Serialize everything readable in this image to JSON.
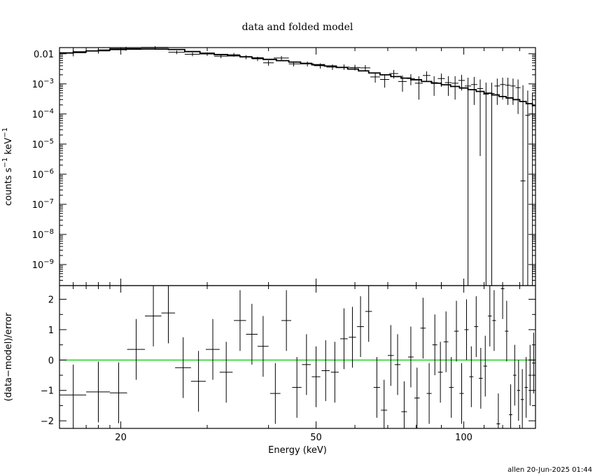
{
  "chart_data": {
    "type": "scatter",
    "title": "data and folded model",
    "xlabel": "Energy (keV)",
    "footer": "allen 20-Jun-2025 01:44",
    "xscale": "log",
    "xlim": [
      15,
      140
    ],
    "x_ticks": [
      {
        "value": 20,
        "label": "20"
      },
      {
        "value": 50,
        "label": "50"
      },
      {
        "value": 100,
        "label": "100"
      }
    ],
    "top_panel": {
      "ylabel": {
        "base": "counts s",
        "exp1": "−1",
        "mid": " keV",
        "exp2": "−1"
      },
      "yscale": "log",
      "ylim": [
        2e-10,
        0.016
      ],
      "y_ticks": [
        {
          "value": 0.01,
          "label": "0.01"
        },
        {
          "value": 0.001,
          "base": "10",
          "exp": "−3"
        },
        {
          "value": 0.0001,
          "base": "10",
          "exp": "−4"
        },
        {
          "value": 1e-05,
          "base": "10",
          "exp": "−5"
        },
        {
          "value": 1e-06,
          "base": "10",
          "exp": "−6"
        },
        {
          "value": 1e-07,
          "base": "10",
          "exp": "−7"
        },
        {
          "value": 1e-08,
          "base": "10",
          "exp": "−8"
        },
        {
          "value": 1e-09,
          "base": "10",
          "exp": "−9"
        }
      ],
      "model_step": {
        "edges": [
          15.0,
          16.0,
          17.0,
          18.0,
          19.0,
          20.5,
          22.0,
          23.5,
          25.0,
          27.0,
          29.0,
          31.0,
          33.0,
          35.0,
          37.0,
          39.0,
          41.5,
          44.0,
          46.5,
          49.0,
          52.0,
          55.0,
          58.0,
          61.0,
          64.0,
          67.5,
          71.0,
          74.5,
          78.0,
          82.0,
          86.0,
          90.0,
          94.0,
          98.0,
          102.0,
          106.0,
          110.0,
          114.0,
          118.0,
          122.0,
          126.0,
          130.0,
          134.0,
          138.0,
          140.0
        ],
        "values": [
          0.0106,
          0.0115,
          0.0124,
          0.0132,
          0.0138,
          0.0142,
          0.0144,
          0.0143,
          0.0138,
          0.0118,
          0.0104,
          0.0094,
          0.0086,
          0.0079,
          0.0072,
          0.0065,
          0.0059,
          0.0053,
          0.0048,
          0.0043,
          0.0039,
          0.0035,
          0.0031,
          0.0027,
          0.0023,
          0.002,
          0.00175,
          0.00155,
          0.00137,
          0.0012,
          0.00105,
          0.00093,
          0.00082,
          0.00073,
          0.00064,
          0.00056,
          0.00049,
          0.00043,
          0.00038,
          0.00034,
          0.0003,
          0.00026,
          0.00022,
          0.00019
        ]
      },
      "points": [
        {
          "x": 16.0,
          "xlo": 15.0,
          "xhi": 17.0,
          "y": 0.0108,
          "ylo": 0.0082,
          "yhi": 0.0134
        },
        {
          "x": 18.0,
          "xlo": 17.0,
          "xhi": 19.0,
          "y": 0.0124,
          "ylo": 0.0101,
          "yhi": 0.0146
        },
        {
          "x": 20.5,
          "xlo": 19.0,
          "xhi": 22.0,
          "y": 0.0149,
          "ylo": 0.0126,
          "yhi": 0.017
        },
        {
          "x": 23.5,
          "xlo": 22.0,
          "xhi": 25.0,
          "y": 0.0163,
          "ylo": 0.0145,
          "yhi": 0.0178
        },
        {
          "x": 26.0,
          "xlo": 25.0,
          "xhi": 27.0,
          "y": 0.0112,
          "ylo": 0.0097,
          "yhi": 0.0127
        },
        {
          "x": 28.0,
          "xlo": 27.0,
          "xhi": 29.0,
          "y": 0.0096,
          "ylo": 0.0083,
          "yhi": 0.011
        },
        {
          "x": 30.0,
          "xlo": 29.0,
          "xhi": 31.0,
          "y": 0.0098,
          "ylo": 0.0085,
          "yhi": 0.0111
        },
        {
          "x": 32.0,
          "xlo": 31.0,
          "xhi": 33.0,
          "y": 0.0083,
          "ylo": 0.0071,
          "yhi": 0.0094
        },
        {
          "x": 34.0,
          "xlo": 33.0,
          "xhi": 35.0,
          "y": 0.0093,
          "ylo": 0.008,
          "yhi": 0.0106
        },
        {
          "x": 36.0,
          "xlo": 35.0,
          "xhi": 37.0,
          "y": 0.0078,
          "ylo": 0.0066,
          "yhi": 0.009
        },
        {
          "x": 38.0,
          "xlo": 37.0,
          "xhi": 39.0,
          "y": 0.0068,
          "ylo": 0.0057,
          "yhi": 0.008
        },
        {
          "x": 40.0,
          "xlo": 39.0,
          "xhi": 41.0,
          "y": 0.005,
          "ylo": 0.004,
          "yhi": 0.006
        },
        {
          "x": 42.5,
          "xlo": 41.0,
          "xhi": 44.0,
          "y": 0.0072,
          "ylo": 0.0061,
          "yhi": 0.0084
        },
        {
          "x": 45.0,
          "xlo": 44.0,
          "xhi": 46.5,
          "y": 0.0046,
          "ylo": 0.0038,
          "yhi": 0.0055
        },
        {
          "x": 48.0,
          "xlo": 46.5,
          "xhi": 49.5,
          "y": 0.0046,
          "ylo": 0.0038,
          "yhi": 0.0055
        },
        {
          "x": 51.0,
          "xlo": 49.5,
          "xhi": 52.5,
          "y": 0.004,
          "ylo": 0.0032,
          "yhi": 0.0048
        },
        {
          "x": 54.0,
          "xlo": 52.5,
          "xhi": 55.5,
          "y": 0.0036,
          "ylo": 0.0029,
          "yhi": 0.0044
        },
        {
          "x": 57.0,
          "xlo": 55.5,
          "xhi": 58.5,
          "y": 0.0036,
          "ylo": 0.0029,
          "yhi": 0.0044
        },
        {
          "x": 60.0,
          "xlo": 58.5,
          "xhi": 61.5,
          "y": 0.0035,
          "ylo": 0.0028,
          "yhi": 0.0043
        },
        {
          "x": 63.0,
          "xlo": 61.5,
          "xhi": 64.5,
          "y": 0.0034,
          "ylo": 0.0027,
          "yhi": 0.0042
        },
        {
          "x": 66.0,
          "xlo": 64.5,
          "xhi": 67.5,
          "y": 0.0017,
          "ylo": 0.0011,
          "yhi": 0.0024
        },
        {
          "x": 69.0,
          "xlo": 67.5,
          "xhi": 70.5,
          "y": 0.0014,
          "ylo": 0.00075,
          "yhi": 0.0021
        },
        {
          "x": 72.0,
          "xlo": 70.5,
          "xhi": 73.5,
          "y": 0.0022,
          "ylo": 0.0015,
          "yhi": 0.0029
        },
        {
          "x": 75.0,
          "xlo": 73.5,
          "xhi": 76.5,
          "y": 0.0012,
          "ylo": 0.00055,
          "yhi": 0.0019
        },
        {
          "x": 78.0,
          "xlo": 76.5,
          "xhi": 79.5,
          "y": 0.0015,
          "ylo": 0.0009,
          "yhi": 0.0021
        },
        {
          "x": 81.0,
          "xlo": 79.5,
          "xhi": 82.5,
          "y": 0.00105,
          "ylo": 0.0003,
          "yhi": 0.0018
        },
        {
          "x": 84.0,
          "xlo": 82.5,
          "xhi": 85.5,
          "y": 0.0019,
          "ylo": 0.0012,
          "yhi": 0.0026
        },
        {
          "x": 87.0,
          "xlo": 85.5,
          "xhi": 88.5,
          "y": 0.0011,
          "ylo": 0.0004,
          "yhi": 0.0018
        },
        {
          "x": 90.0,
          "xlo": 88.5,
          "xhi": 91.5,
          "y": 0.0015,
          "ylo": 0.0008,
          "yhi": 0.0022
        },
        {
          "x": 93.0,
          "xlo": 91.5,
          "xhi": 94.5,
          "y": 0.0011,
          "ylo": 0.0004,
          "yhi": 0.0018
        },
        {
          "x": 96.0,
          "xlo": 94.5,
          "xhi": 97.5,
          "y": 0.00105,
          "ylo": 0.0003,
          "yhi": 0.0018
        },
        {
          "x": 99.0,
          "xlo": 97.5,
          "xhi": 100.5,
          "y": 0.0013,
          "ylo": 0.0006,
          "yhi": 0.002
        },
        {
          "x": 102.0,
          "xlo": 100.5,
          "xhi": 103.5,
          "y": 0.00085,
          "ylo": 2e-10,
          "yhi": 0.0016
        },
        {
          "x": 105.0,
          "xlo": 103.5,
          "xhi": 106.5,
          "y": 0.00095,
          "ylo": 0.0002,
          "yhi": 0.0017
        },
        {
          "x": 108.0,
          "xlo": 106.5,
          "xhi": 109.5,
          "y": 0.0007,
          "ylo": 4e-06,
          "yhi": 0.0014
        },
        {
          "x": 111.0,
          "xlo": 109.5,
          "xhi": 112.5,
          "y": 0.00045,
          "ylo": 2e-10,
          "yhi": 0.0011
        },
        {
          "x": 114.0,
          "xlo": 112.5,
          "xhi": 115.5,
          "y": 0.00048,
          "ylo": 2e-10,
          "yhi": 0.0011
        },
        {
          "x": 117.0,
          "xlo": 115.5,
          "xhi": 118.5,
          "y": 0.00085,
          "ylo": 0.0002,
          "yhi": 0.0015
        },
        {
          "x": 120.0,
          "xlo": 118.5,
          "xhi": 121.5,
          "y": 0.00095,
          "ylo": 0.0003,
          "yhi": 0.0016
        },
        {
          "x": 123.0,
          "xlo": 121.5,
          "xhi": 124.5,
          "y": 0.0009,
          "ylo": 0.0002,
          "yhi": 0.0016
        },
        {
          "x": 126.0,
          "xlo": 124.5,
          "xhi": 127.5,
          "y": 0.00085,
          "ylo": 0.0002,
          "yhi": 0.0015
        },
        {
          "x": 129.0,
          "xlo": 127.5,
          "xhi": 130.5,
          "y": 0.00075,
          "ylo": 0.0001,
          "yhi": 0.0014
        },
        {
          "x": 132.0,
          "xlo": 130.5,
          "xhi": 133.5,
          "y": 6e-07,
          "ylo": 2e-10,
          "yhi": 0.0009
        },
        {
          "x": 135.0,
          "xlo": 133.5,
          "xhi": 136.5,
          "y": 9e-05,
          "ylo": 2e-10,
          "yhi": 0.0006
        },
        {
          "x": 138.0,
          "xlo": 136.5,
          "xhi": 139.5,
          "y": 0.0001,
          "ylo": 2e-10,
          "yhi": 0.0005
        }
      ]
    },
    "bottom_panel": {
      "ylabel": "(data−model)/error",
      "yscale": "linear",
      "ylim": [
        -2.25,
        2.45
      ],
      "y_ticks": [
        {
          "value": 2,
          "label": "2"
        },
        {
          "value": 1,
          "label": "1"
        },
        {
          "value": 0,
          "label": "0"
        },
        {
          "value": -1,
          "label": "−1"
        },
        {
          "value": -2,
          "label": "−2"
        }
      ],
      "zero_line_color": "#00cc00",
      "points": [
        {
          "x": 16.0,
          "xlo": 15.0,
          "xhi": 17.0,
          "y": -1.15,
          "ylo": -2.15,
          "yhi": -0.15
        },
        {
          "x": 18.0,
          "xlo": 17.0,
          "xhi": 19.0,
          "y": -1.05,
          "ylo": -2.05,
          "yhi": -0.05
        },
        {
          "x": 19.8,
          "xlo": 19.0,
          "xhi": 20.6,
          "y": -1.08,
          "ylo": -2.08,
          "yhi": -0.08
        },
        {
          "x": 21.5,
          "xlo": 20.6,
          "xhi": 22.4,
          "y": 0.35,
          "ylo": -0.65,
          "yhi": 1.35
        },
        {
          "x": 23.3,
          "xlo": 22.4,
          "xhi": 24.2,
          "y": 1.45,
          "ylo": 0.45,
          "yhi": 2.45
        },
        {
          "x": 25.0,
          "xlo": 24.2,
          "xhi": 25.8,
          "y": 1.55,
          "ylo": 0.55,
          "yhi": 2.45
        },
        {
          "x": 26.8,
          "xlo": 25.8,
          "xhi": 27.8,
          "y": -0.25,
          "ylo": -1.25,
          "yhi": 0.75
        },
        {
          "x": 28.8,
          "xlo": 27.8,
          "xhi": 29.8,
          "y": -0.7,
          "ylo": -1.7,
          "yhi": 0.3
        },
        {
          "x": 30.8,
          "xlo": 29.8,
          "xhi": 31.8,
          "y": 0.35,
          "ylo": -0.65,
          "yhi": 1.35
        },
        {
          "x": 32.8,
          "xlo": 31.8,
          "xhi": 33.8,
          "y": -0.4,
          "ylo": -1.4,
          "yhi": 0.6
        },
        {
          "x": 35.0,
          "xlo": 34.0,
          "xhi": 36.0,
          "y": 1.3,
          "ylo": 0.3,
          "yhi": 2.3
        },
        {
          "x": 37.0,
          "xlo": 36.0,
          "xhi": 38.0,
          "y": 0.85,
          "ylo": -0.15,
          "yhi": 1.85
        },
        {
          "x": 39.0,
          "xlo": 38.0,
          "xhi": 40.0,
          "y": 0.45,
          "ylo": -0.55,
          "yhi": 1.45
        },
        {
          "x": 41.3,
          "xlo": 40.3,
          "xhi": 42.3,
          "y": -1.1,
          "ylo": -2.1,
          "yhi": -0.1
        },
        {
          "x": 43.5,
          "xlo": 42.5,
          "xhi": 44.5,
          "y": 1.3,
          "ylo": 0.3,
          "yhi": 2.3
        },
        {
          "x": 45.7,
          "xlo": 44.7,
          "xhi": 46.7,
          "y": -0.9,
          "ylo": -1.9,
          "yhi": 0.1
        },
        {
          "x": 47.8,
          "xlo": 46.8,
          "xhi": 48.8,
          "y": -0.15,
          "ylo": -1.15,
          "yhi": 0.85
        },
        {
          "x": 50.0,
          "xlo": 49.0,
          "xhi": 51.0,
          "y": -0.55,
          "ylo": -1.55,
          "yhi": 0.45
        },
        {
          "x": 52.3,
          "xlo": 51.3,
          "xhi": 53.3,
          "y": -0.35,
          "ylo": -1.35,
          "yhi": 0.65
        },
        {
          "x": 54.6,
          "xlo": 53.6,
          "xhi": 55.6,
          "y": -0.4,
          "ylo": -1.4,
          "yhi": 0.6
        },
        {
          "x": 57.0,
          "xlo": 56.0,
          "xhi": 58.0,
          "y": 0.7,
          "ylo": -0.3,
          "yhi": 1.7
        },
        {
          "x": 59.3,
          "xlo": 58.3,
          "xhi": 60.3,
          "y": 0.75,
          "ylo": -0.25,
          "yhi": 1.75
        },
        {
          "x": 61.6,
          "xlo": 60.6,
          "xhi": 62.6,
          "y": 1.1,
          "ylo": 0.1,
          "yhi": 2.1
        },
        {
          "x": 64.0,
          "xlo": 63.0,
          "xhi": 65.0,
          "y": 1.6,
          "ylo": 0.6,
          "yhi": 2.45
        },
        {
          "x": 66.5,
          "xlo": 65.5,
          "xhi": 67.5,
          "y": -0.9,
          "ylo": -1.9,
          "yhi": 0.1
        },
        {
          "x": 68.8,
          "xlo": 67.8,
          "xhi": 69.8,
          "y": -1.65,
          "ylo": -2.25,
          "yhi": -0.65
        },
        {
          "x": 71.0,
          "xlo": 70.0,
          "xhi": 72.0,
          "y": 0.15,
          "ylo": -0.85,
          "yhi": 1.15
        },
        {
          "x": 73.3,
          "xlo": 72.3,
          "xhi": 74.3,
          "y": -0.15,
          "ylo": -1.15,
          "yhi": 0.85
        },
        {
          "x": 75.6,
          "xlo": 74.6,
          "xhi": 76.6,
          "y": -1.7,
          "ylo": -2.25,
          "yhi": -0.7
        },
        {
          "x": 78.0,
          "xlo": 77.0,
          "xhi": 79.0,
          "y": 0.1,
          "ylo": -0.9,
          "yhi": 1.1
        },
        {
          "x": 80.3,
          "xlo": 79.3,
          "xhi": 81.3,
          "y": -1.25,
          "ylo": -2.25,
          "yhi": -0.25
        },
        {
          "x": 82.6,
          "xlo": 81.6,
          "xhi": 83.6,
          "y": 1.05,
          "ylo": 0.05,
          "yhi": 2.05
        },
        {
          "x": 85.0,
          "xlo": 84.0,
          "xhi": 86.0,
          "y": -1.1,
          "ylo": -2.1,
          "yhi": -0.1
        },
        {
          "x": 87.3,
          "xlo": 86.3,
          "xhi": 88.3,
          "y": 0.5,
          "ylo": -0.5,
          "yhi": 1.5
        },
        {
          "x": 89.6,
          "xlo": 88.6,
          "xhi": 90.6,
          "y": -0.4,
          "ylo": -1.4,
          "yhi": 0.6
        },
        {
          "x": 92.0,
          "xlo": 91.0,
          "xhi": 93.0,
          "y": 0.6,
          "ylo": -0.4,
          "yhi": 1.6
        },
        {
          "x": 94.3,
          "xlo": 93.3,
          "xhi": 95.3,
          "y": -0.9,
          "ylo": -1.9,
          "yhi": 0.1
        },
        {
          "x": 96.6,
          "xlo": 95.6,
          "xhi": 97.6,
          "y": 0.95,
          "ylo": -0.05,
          "yhi": 1.95
        },
        {
          "x": 99.0,
          "xlo": 98.0,
          "xhi": 100.0,
          "y": -1.1,
          "ylo": -2.1,
          "yhi": -0.1
        },
        {
          "x": 101.3,
          "xlo": 100.3,
          "xhi": 102.3,
          "y": 1.0,
          "ylo": 0.0,
          "yhi": 2.0
        },
        {
          "x": 103.6,
          "xlo": 102.6,
          "xhi": 104.6,
          "y": -0.55,
          "ylo": -1.55,
          "yhi": 0.45
        },
        {
          "x": 106.0,
          "xlo": 105.0,
          "xhi": 107.0,
          "y": 1.1,
          "ylo": 0.1,
          "yhi": 2.1
        },
        {
          "x": 108.3,
          "xlo": 107.3,
          "xhi": 109.3,
          "y": -0.6,
          "ylo": -1.6,
          "yhi": 0.4
        },
        {
          "x": 110.6,
          "xlo": 109.6,
          "xhi": 111.6,
          "y": -0.2,
          "ylo": -1.2,
          "yhi": 0.8
        },
        {
          "x": 113.0,
          "xlo": 112.0,
          "xhi": 114.0,
          "y": 1.45,
          "ylo": 0.45,
          "yhi": 2.45
        },
        {
          "x": 115.3,
          "xlo": 114.3,
          "xhi": 116.3,
          "y": 1.3,
          "ylo": 0.3,
          "yhi": 2.3
        },
        {
          "x": 117.6,
          "xlo": 116.6,
          "xhi": 118.6,
          "y": -2.1,
          "ylo": -2.25,
          "yhi": -1.1
        },
        {
          "x": 120.0,
          "xlo": 119.0,
          "xhi": 121.0,
          "y": 2.35,
          "ylo": 1.35,
          "yhi": 2.45
        },
        {
          "x": 122.3,
          "xlo": 121.3,
          "xhi": 123.3,
          "y": 0.95,
          "ylo": -0.05,
          "yhi": 1.95
        },
        {
          "x": 124.6,
          "xlo": 123.6,
          "xhi": 125.6,
          "y": -1.8,
          "ylo": -2.25,
          "yhi": -0.8
        },
        {
          "x": 127.0,
          "xlo": 126.0,
          "xhi": 128.0,
          "y": -0.5,
          "ylo": -1.5,
          "yhi": 0.5
        },
        {
          "x": 129.3,
          "xlo": 128.3,
          "xhi": 130.3,
          "y": -1.0,
          "ylo": -2.0,
          "yhi": 0.0
        },
        {
          "x": 131.6,
          "xlo": 130.6,
          "xhi": 132.6,
          "y": -1.3,
          "ylo": -2.25,
          "yhi": -0.3
        },
        {
          "x": 134.0,
          "xlo": 133.0,
          "xhi": 135.0,
          "y": -0.9,
          "ylo": -1.9,
          "yhi": 0.1
        },
        {
          "x": 136.5,
          "xlo": 135.5,
          "xhi": 137.5,
          "y": -0.5,
          "ylo": -1.5,
          "yhi": 0.5
        },
        {
          "x": 138.8,
          "xlo": 137.8,
          "xhi": 139.8,
          "y": -0.1,
          "ylo": -1.1,
          "yhi": 0.9
        }
      ]
    }
  }
}
